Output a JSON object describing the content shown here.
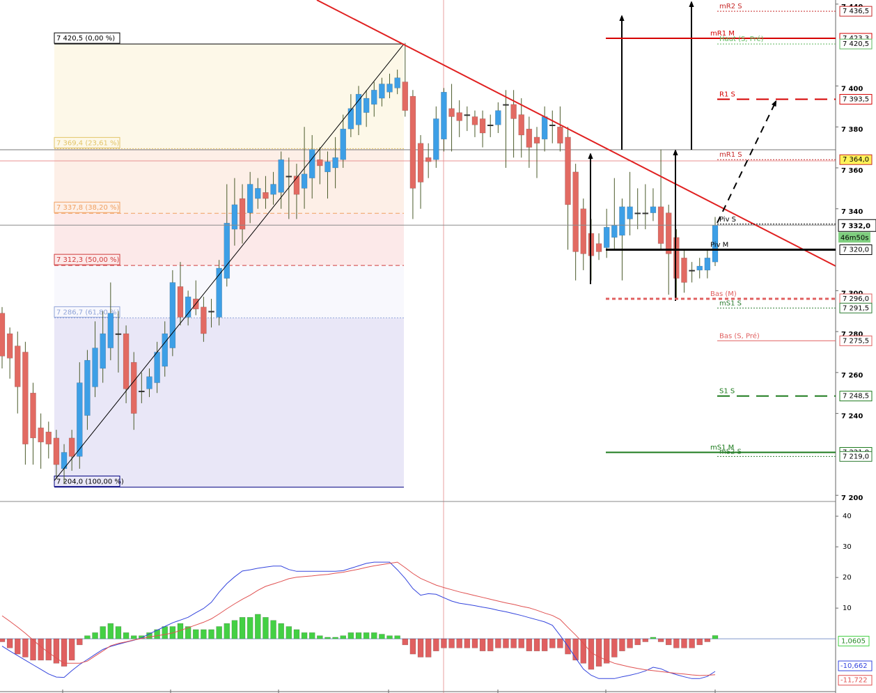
{
  "chart_data": [
    {
      "type": "candlestick",
      "ylim": [
        7197,
        7442
      ],
      "yticks": [
        {
          "value": 7200,
          "label": "7 200"
        },
        {
          "value": 7240,
          "label": "7 240"
        },
        {
          "value": 7260,
          "label": "7 260"
        },
        {
          "value": 7280,
          "label": "7 280"
        },
        {
          "value": 7300,
          "label": "7 300"
        },
        {
          "value": 7340,
          "label": "7 340"
        },
        {
          "value": 7360,
          "label": "7 360"
        },
        {
          "value": 7380,
          "label": "7 380"
        },
        {
          "value": 7400,
          "label": "7 400"
        },
        {
          "value": 7440,
          "label": "7 440"
        }
      ],
      "up_color": "#3d9fe6",
      "down_color": "#e26a62",
      "open": [
        7289,
        7279,
        7273,
        7270,
        7250,
        7233,
        7231,
        7228,
        7213,
        7228,
        7219,
        7239,
        7253,
        7262,
        7272,
        7279,
        7279,
        7265,
        7251,
        7252,
        7255,
        7263,
        7272,
        7302,
        7287,
        7296,
        7292,
        7290,
        7287,
        7306,
        7330,
        7345,
        7338,
        7345,
        7348,
        7347,
        7348,
        7356,
        7356,
        7350,
        7355,
        7364,
        7358,
        7360,
        7364,
        7379,
        7381,
        7387,
        7391,
        7394,
        7397,
        7399,
        7402,
        7395,
        7372,
        7365,
        7364,
        7374,
        7389,
        7387,
        7386,
        7385,
        7384,
        7381,
        7381,
        7391,
        7391,
        7386,
        7379,
        7375,
        7374,
        7381,
        7380,
        7375,
        7358,
        7340,
        7328,
        7323,
        7321,
        7326,
        7327,
        7335,
        7338,
        7338,
        7338,
        7341,
        7338,
        7326,
        7316,
        7310,
        7310,
        7310,
        7314
      ],
      "high": [
        7292,
        7282,
        7280,
        7275,
        7255,
        7240,
        7236,
        7232,
        7225,
        7232,
        7265,
        7271,
        7285,
        7290,
        7304,
        7290,
        7283,
        7270,
        7260,
        7262,
        7275,
        7285,
        7310,
        7314,
        7300,
        7305,
        7297,
        7296,
        7315,
        7352,
        7355,
        7352,
        7358,
        7355,
        7356,
        7358,
        7368,
        7365,
        7362,
        7380,
        7376,
        7370,
        7368,
        7375,
        7386,
        7396,
        7400,
        7398,
        7402,
        7404,
        7406,
        7408,
        7421,
        7398,
        7376,
        7372,
        7390,
        7399,
        7401,
        7393,
        7390,
        7388,
        7388,
        7386,
        7392,
        7398,
        7398,
        7394,
        7385,
        7380,
        7390,
        7388,
        7390,
        7380,
        7362,
        7345,
        7335,
        7328,
        7340,
        7355,
        7345,
        7358,
        7350,
        7352,
        7350,
        7369,
        7342,
        7330,
        7320,
        7314,
        7316,
        7320,
        7336
      ],
      "low": [
        7262,
        7257,
        7240,
        7215,
        7215,
        7213,
        7218,
        7208,
        7206,
        7212,
        7213,
        7232,
        7248,
        7255,
        7266,
        7260,
        7245,
        7232,
        7245,
        7248,
        7250,
        7258,
        7268,
        7283,
        7283,
        7288,
        7275,
        7282,
        7283,
        7302,
        7322,
        7323,
        7333,
        7340,
        7340,
        7342,
        7340,
        7335,
        7335,
        7340,
        7345,
        7352,
        7345,
        7350,
        7360,
        7375,
        7376,
        7380,
        7385,
        7390,
        7394,
        7396,
        7385,
        7335,
        7340,
        7355,
        7360,
        7368,
        7368,
        7375,
        7378,
        7375,
        7370,
        7375,
        7377,
        7360,
        7365,
        7365,
        7360,
        7355,
        7368,
        7372,
        7368,
        7320,
        7305,
        7310,
        7305,
        7315,
        7316,
        7320,
        7305,
        7327,
        7330,
        7330,
        7334,
        7320,
        7298,
        7296,
        7299,
        7304,
        7306,
        7306,
        7312
      ],
      "close": [
        7268,
        7267,
        7253,
        7225,
        7228,
        7226,
        7225,
        7215,
        7221,
        7219,
        7255,
        7266,
        7272,
        7279,
        7289,
        7279,
        7252,
        7240,
        7251,
        7258,
        7270,
        7279,
        7304,
        7287,
        7297,
        7291,
        7279,
        7290,
        7311,
        7333,
        7342,
        7330,
        7352,
        7350,
        7345,
        7352,
        7364,
        7356,
        7347,
        7357,
        7369,
        7361,
        7363,
        7365,
        7379,
        7389,
        7396,
        7394,
        7398,
        7401,
        7401,
        7404,
        7388,
        7350,
        7353,
        7363,
        7384,
        7397,
        7385,
        7383,
        7386,
        7381,
        7377,
        7381,
        7388,
        7391,
        7384,
        7376,
        7370,
        7372,
        7385,
        7381,
        7372,
        7342,
        7319,
        7318,
        7317,
        7319,
        7331,
        7332,
        7341,
        7341,
        7338,
        7338,
        7341,
        7323,
        7318,
        7306,
        7304,
        7310,
        7312,
        7316,
        7332
      ],
      "fibonacci": [
        {
          "value": 7420.5,
          "label": "7 420,5 (0,00 %)",
          "color": "#000000",
          "style": "solid",
          "fill": "#fdf8e8"
        },
        {
          "value": 7369.4,
          "label": "7 369,4 (23,61 %)",
          "color": "#e2c468",
          "style": "dotted",
          "fill": "#fdefe7"
        },
        {
          "value": 7337.8,
          "label": "7 337,8 (38,20 %)",
          "color": "#f0a060",
          "style": "dashed",
          "fill": "#fce9e9"
        },
        {
          "value": 7312.3,
          "label": "7 312,3 (50,00 %)",
          "color": "#d03c3c",
          "style": "dashed",
          "fill": "#f8f8fd"
        },
        {
          "value": 7286.7,
          "label": "7 286,7 (61,80 %)",
          "color": "#90a4d8",
          "style": "dotted",
          "fill": "#e9e7f7"
        },
        {
          "value": 7204.0,
          "label": "7 204,0 (100,00 %)",
          "color": "#000080",
          "style": "solid"
        }
      ],
      "levels": [
        {
          "name": "mR2 S",
          "value": 7436.5,
          "value_label": "7 436,5",
          "color": "#c62828",
          "style": "dotted",
          "width": 1
        },
        {
          "name": "mR1 M",
          "value": 7423.3,
          "value_label": "7 423,3",
          "color": "#d50000",
          "style": "solid",
          "width": 2
        },
        {
          "name": "Haut (S, Pré)",
          "value": 7420.5,
          "value_label": "7 420,5",
          "color": "#5cb85c",
          "style": "dotted",
          "width": 1
        },
        {
          "name": "R1 S",
          "value": 7393.5,
          "value_label": "7 393,5",
          "color": "#d50000",
          "style": "dashed",
          "width": 2
        },
        {
          "name": "mR1 S",
          "value": 7364.0,
          "value_label": "7 364,0",
          "color": "#c62828",
          "style": "dotted",
          "width": 1,
          "background": "#fff35a"
        },
        {
          "name": "Piv S",
          "value": 7332.5,
          "color": "#000000",
          "style": "dotted",
          "width": 1
        },
        {
          "name": "Piv M",
          "value": 7320.0,
          "value_label": "7 320,0",
          "color": "#000000",
          "style": "solid",
          "width": 3
        },
        {
          "name": "Bas (M)",
          "value": 7296.0,
          "value_label": "7 296,0",
          "color": "#e06060",
          "style": "dotted",
          "width": 3
        },
        {
          "name": "mS1 S",
          "value": 7291.5,
          "value_label": "7 291,5",
          "color": "#2e7d32",
          "style": "dotted",
          "width": 1
        },
        {
          "name": "Bas (S, Pré)",
          "value": 7275.5,
          "value_label": "7 275,5",
          "color": "#e06060",
          "style": "solid",
          "width": 1
        },
        {
          "name": "S1 S",
          "value": 7248.5,
          "value_label": "7 248,5",
          "color": "#1b7a1b",
          "style": "dashed",
          "width": 2
        },
        {
          "name": "mS1 M",
          "value": 7221.0,
          "value_label": "7 221,0",
          "color": "#1b7a1b",
          "style": "solid",
          "width": 2
        },
        {
          "name": "mS2 S",
          "value": 7219.0,
          "value_label": "7 219,0",
          "color": "#2e7d32",
          "style": "dotted",
          "width": 1
        }
      ],
      "current": {
        "value": 7332.0,
        "label": "7 332,0",
        "timer": "46m50s"
      }
    },
    {
      "type": "macd",
      "ylim": [
        -17.7,
        44.8
      ],
      "yticks": [
        10,
        20,
        30,
        40
      ],
      "histogram": {
        "values": [
          -1,
          -3,
          -5,
          -6,
          -7,
          -7,
          -7,
          -8,
          -9,
          -7,
          -2,
          1,
          2,
          4,
          5,
          4,
          2,
          1,
          1,
          2,
          3,
          4,
          4,
          5,
          4,
          3,
          3,
          3,
          4,
          5,
          6,
          7,
          7,
          8,
          7,
          6,
          5,
          4,
          3,
          2,
          2,
          1,
          0.5,
          0.5,
          1,
          2,
          2,
          2,
          2,
          1.5,
          1,
          1,
          -2,
          -5,
          -6,
          -6,
          -4,
          -3,
          -3,
          -3,
          -3,
          -3,
          -4,
          -4,
          -3,
          -3,
          -3,
          -3,
          -4,
          -4,
          -4,
          -3,
          -3,
          -5,
          -7,
          -8,
          -10,
          -9,
          -8,
          -6,
          -4,
          -3,
          -2,
          -1,
          0.5,
          -1,
          -2,
          -3,
          -3,
          -3,
          -2,
          -1,
          1.0605
        ],
        "up_color": "#44d044",
        "down_color": "#e06060",
        "last_label": "1,0605"
      },
      "series": [
        {
          "color": "#3344dd",
          "last_label": "-10,662",
          "values": [
            -2.4,
            -4,
            -5.5,
            -7,
            -8.5,
            -10,
            -11.5,
            -12.5,
            -12.6,
            -10.4,
            -8.4,
            -6.8,
            -5.1,
            -3.5,
            -2.5,
            -1.8,
            -1.1,
            -0.5,
            0.3,
            1.6,
            2.8,
            4,
            5.2,
            6.1,
            7,
            8.5,
            9.9,
            11.9,
            15.2,
            18,
            20.2,
            22.1,
            22.5,
            23,
            23.4,
            23.7,
            23.7,
            22.6,
            22,
            22,
            22,
            22,
            22,
            22,
            22.2,
            23,
            23.8,
            24.6,
            25,
            25,
            25,
            22.5,
            19.7,
            16.4,
            14.2,
            14.7,
            14.5,
            13.4,
            12.3,
            11.6,
            11.2,
            10.8,
            10.3,
            9.9,
            9.3,
            8.8,
            8.2,
            7.6,
            6.9,
            6.2,
            5.5,
            4.4,
            1.1,
            -2.4,
            -6.3,
            -9.9,
            -11.9,
            -13,
            -13,
            -13,
            -12.4,
            -11.9,
            -11.3,
            -10.5,
            -9.3,
            -9.8,
            -10.9,
            -11.7,
            -12.4,
            -13,
            -13,
            -12.3,
            -10.662
          ]
        },
        {
          "color": "#e05050",
          "last_label": "-11,722",
          "values": [
            7.5,
            5.7,
            3.8,
            1.8,
            -0.4,
            -2.6,
            -4.5,
            -6.3,
            -8,
            -8,
            -8,
            -7.3,
            -5.6,
            -4,
            -2.3,
            -1.5,
            -1,
            -0.4,
            0.1,
            0.6,
            1,
            1.4,
            1.9,
            2.7,
            3.6,
            4.5,
            5.4,
            6.5,
            8.1,
            9.8,
            11.4,
            12.9,
            14.2,
            15.8,
            17.1,
            17.9,
            18.7,
            19.6,
            20.1,
            20.3,
            20.5,
            20.8,
            21,
            21.4,
            21.7,
            22.2,
            22.7,
            23.3,
            23.8,
            24.2,
            24.6,
            25,
            23.2,
            21.3,
            19.7,
            18.6,
            17.5,
            16.7,
            16,
            15.3,
            14.7,
            14.1,
            13.5,
            12.9,
            12.3,
            11.7,
            11.2,
            10.6,
            10.1,
            9.3,
            8.4,
            7.6,
            6.3,
            3.7,
            1.2,
            -1.5,
            -4.5,
            -5.9,
            -7,
            -8,
            -8.6,
            -9.2,
            -9.7,
            -10.1,
            -10.4,
            -10.7,
            -11,
            -11.3,
            -11.5,
            -11.8,
            -12,
            -11.9,
            -11.722
          ]
        }
      ]
    }
  ]
}
